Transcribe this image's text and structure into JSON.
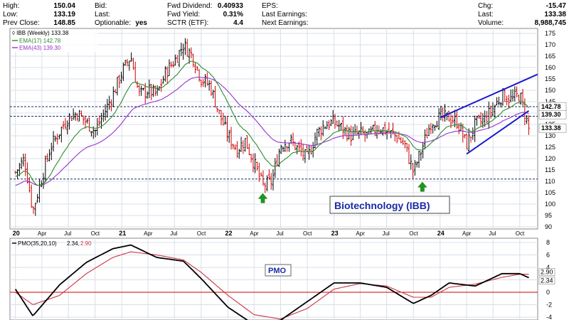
{
  "header": {
    "fields": [
      {
        "label": "High:",
        "value": "150.04"
      },
      {
        "label": "Low:",
        "value": "133.19"
      },
      {
        "label": "Prev Close:",
        "value": "148.85"
      },
      {
        "label": "Bid:",
        "value": ""
      },
      {
        "label": "Last:",
        "value": ""
      },
      {
        "label": "Optionable:",
        "value": "yes"
      },
      {
        "label": "Fwd Dividend:",
        "value": "0.40933"
      },
      {
        "label": "Fwd Yield:",
        "value": "0.31%"
      },
      {
        "label": "SCTR (ETF):",
        "value": "4.4"
      },
      {
        "label": "EPS:",
        "value": ""
      },
      {
        "label": "Last Earnings:",
        "value": ""
      },
      {
        "label": "Next Earnings:",
        "value": ""
      },
      {
        "label": "Chg:",
        "value": "-15.47"
      },
      {
        "label": "Last:",
        "value": "133.38"
      },
      {
        "label": "Volume:",
        "value": "8,988,745"
      }
    ]
  },
  "legend": {
    "main": "IBB (Weekly) 133.38",
    "ema17": "EMA(17) 142.78",
    "ema43": "EMA(43) 139.30",
    "pmo_label": "PMO(35,20,10)",
    "pmo_v1": "2.34,",
    "pmo_v2": "2.90"
  },
  "annotations": {
    "title_box": "Biotechnology (IBB)",
    "pmo_box": "PMO"
  },
  "price_tags": {
    "ema17": "142.78",
    "ema43": "139.30",
    "last": "133.38"
  },
  "pmo_tags": {
    "a": "2.90",
    "b": "2.34"
  },
  "colors": {
    "up": "#000000",
    "down": "#cc0000",
    "ema17": "#2e8b2e",
    "ema43": "#9933cc",
    "trend": "#1a1acc",
    "arrow": "#1a9c1a",
    "grid": "#d8dfe8",
    "dashed": "#1a2a66",
    "pmo": "#000000",
    "pmo_signal": "#cc3344",
    "zero_line": "#cc0000"
  },
  "chart_data": {
    "type": "candlestick",
    "symbol": "IBB",
    "period": "Weekly",
    "price_axis": {
      "min": 90,
      "max": 175,
      "ticks": [
        175,
        170,
        165,
        160,
        155,
        150,
        145,
        140,
        135,
        130,
        125,
        120,
        115,
        110,
        105,
        100,
        95,
        90
      ]
    },
    "x_axis": {
      "start": "2020-01",
      "end": "2024-12",
      "labels": [
        "20",
        "Apr",
        "Jul",
        "Oct",
        "21",
        "Apr",
        "Jul",
        "Oct",
        "22",
        "Apr",
        "Jul",
        "Oct",
        "23",
        "Apr",
        "Jul",
        "Oct",
        "24",
        "Apr",
        "Jul",
        "Oct"
      ],
      "year_labels": [
        "20",
        "21",
        "22",
        "23",
        "24"
      ]
    },
    "close_anchors": [
      {
        "t": "2020-01",
        "v": 114
      },
      {
        "t": "2020-02",
        "v": 120
      },
      {
        "t": "2020-03",
        "v": 97
      },
      {
        "t": "2020-04",
        "v": 112
      },
      {
        "t": "2020-05",
        "v": 125
      },
      {
        "t": "2020-06",
        "v": 132
      },
      {
        "t": "2020-07",
        "v": 138
      },
      {
        "t": "2020-08",
        "v": 140
      },
      {
        "t": "2020-09",
        "v": 136
      },
      {
        "t": "2020-10",
        "v": 132
      },
      {
        "t": "2020-11",
        "v": 140
      },
      {
        "t": "2020-12",
        "v": 148
      },
      {
        "t": "2021-01",
        "v": 158
      },
      {
        "t": "2021-02",
        "v": 165
      },
      {
        "t": "2021-03",
        "v": 148
      },
      {
        "t": "2021-04",
        "v": 150
      },
      {
        "t": "2021-05",
        "v": 148
      },
      {
        "t": "2021-06",
        "v": 158
      },
      {
        "t": "2021-07",
        "v": 163
      },
      {
        "t": "2021-08",
        "v": 170
      },
      {
        "t": "2021-09",
        "v": 165
      },
      {
        "t": "2021-10",
        "v": 155
      },
      {
        "t": "2021-11",
        "v": 152
      },
      {
        "t": "2021-12",
        "v": 140
      },
      {
        "t": "2022-01",
        "v": 130
      },
      {
        "t": "2022-02",
        "v": 124
      },
      {
        "t": "2022-03",
        "v": 128
      },
      {
        "t": "2022-04",
        "v": 118
      },
      {
        "t": "2022-05",
        "v": 108
      },
      {
        "t": "2022-06",
        "v": 110
      },
      {
        "t": "2022-07",
        "v": 126
      },
      {
        "t": "2022-08",
        "v": 128
      },
      {
        "t": "2022-09",
        "v": 124
      },
      {
        "t": "2022-10",
        "v": 120
      },
      {
        "t": "2022-11",
        "v": 131
      },
      {
        "t": "2022-12",
        "v": 135
      },
      {
        "t": "2023-01",
        "v": 136
      },
      {
        "t": "2023-02",
        "v": 133
      },
      {
        "t": "2023-03",
        "v": 130
      },
      {
        "t": "2023-04",
        "v": 131
      },
      {
        "t": "2023-05",
        "v": 130
      },
      {
        "t": "2023-06",
        "v": 134
      },
      {
        "t": "2023-07",
        "v": 132
      },
      {
        "t": "2023-08",
        "v": 130
      },
      {
        "t": "2023-09",
        "v": 126
      },
      {
        "t": "2023-10",
        "v": 114
      },
      {
        "t": "2023-11",
        "v": 125
      },
      {
        "t": "2023-12",
        "v": 136
      },
      {
        "t": "2024-01",
        "v": 138
      },
      {
        "t": "2024-02",
        "v": 138
      },
      {
        "t": "2024-03",
        "v": 136
      },
      {
        "t": "2024-04",
        "v": 126
      },
      {
        "t": "2024-05",
        "v": 135
      },
      {
        "t": "2024-06",
        "v": 137
      },
      {
        "t": "2024-07",
        "v": 142
      },
      {
        "t": "2024-08",
        "v": 148
      },
      {
        "t": "2024-09",
        "v": 146
      },
      {
        "t": "2024-10",
        "v": 148
      },
      {
        "t": "2024-11",
        "v": 133.38
      }
    ],
    "series": [
      {
        "name": "EMA(17)",
        "last": 142.78
      },
      {
        "name": "EMA(43)",
        "last": 139.3
      }
    ],
    "horizontal_lines": [
      142.8,
      138.6,
      111.0
    ],
    "trend_channel": [
      {
        "from": {
          "t": "2024-01",
          "v": 138
        },
        "to": {
          "t": "2024-12",
          "v": 157
        }
      },
      {
        "from": {
          "t": "2024-04",
          "v": 122
        },
        "to": {
          "t": "2024-11",
          "v": 141
        }
      }
    ],
    "markers": [
      {
        "type": "up-arrow",
        "t": "2022-05",
        "v": 104
      },
      {
        "type": "up-arrow",
        "t": "2023-11",
        "v": 109
      }
    ],
    "pmo": {
      "axis": {
        "min": -4,
        "max": 8,
        "ticks": [
          8,
          6,
          4,
          2,
          0,
          -2,
          -4
        ]
      },
      "pmo_anchors": [
        {
          "t": "2020-01",
          "v": 0.5
        },
        {
          "t": "2020-03",
          "v": -3.8
        },
        {
          "t": "2020-06",
          "v": 1.2
        },
        {
          "t": "2020-09",
          "v": 4.8
        },
        {
          "t": "2020-12",
          "v": 7
        },
        {
          "t": "2021-02",
          "v": 7.6
        },
        {
          "t": "2021-05",
          "v": 5.6
        },
        {
          "t": "2021-08",
          "v": 5.0
        },
        {
          "t": "2021-10",
          "v": 2.2
        },
        {
          "t": "2022-01",
          "v": -2.4
        },
        {
          "t": "2022-04",
          "v": -5.2
        },
        {
          "t": "2022-07",
          "v": -4.5
        },
        {
          "t": "2022-10",
          "v": -1.5
        },
        {
          "t": "2023-01",
          "v": 1.5
        },
        {
          "t": "2023-04",
          "v": 1.5
        },
        {
          "t": "2023-07",
          "v": 0.8
        },
        {
          "t": "2023-10",
          "v": -1.8
        },
        {
          "t": "2023-12",
          "v": -0.5
        },
        {
          "t": "2024-02",
          "v": 1.5
        },
        {
          "t": "2024-05",
          "v": 1.0
        },
        {
          "t": "2024-08",
          "v": 3.0
        },
        {
          "t": "2024-10",
          "v": 3.0
        },
        {
          "t": "2024-11",
          "v": 2.34
        }
      ],
      "signal_anchors": [
        {
          "t": "2020-01",
          "v": 0
        },
        {
          "t": "2020-03",
          "v": -2.0
        },
        {
          "t": "2020-06",
          "v": -0.5
        },
        {
          "t": "2020-09",
          "v": 3.0
        },
        {
          "t": "2020-12",
          "v": 5.6
        },
        {
          "t": "2021-02",
          "v": 6.5
        },
        {
          "t": "2021-05",
          "v": 6.0
        },
        {
          "t": "2021-08",
          "v": 5.2
        },
        {
          "t": "2021-10",
          "v": 3.2
        },
        {
          "t": "2022-01",
          "v": -0.5
        },
        {
          "t": "2022-04",
          "v": -3.6
        },
        {
          "t": "2022-07",
          "v": -4.3
        },
        {
          "t": "2022-10",
          "v": -2.6
        },
        {
          "t": "2023-01",
          "v": 0.5
        },
        {
          "t": "2023-04",
          "v": 1.4
        },
        {
          "t": "2023-07",
          "v": 1.0
        },
        {
          "t": "2023-10",
          "v": -0.8
        },
        {
          "t": "2023-12",
          "v": -0.8
        },
        {
          "t": "2024-02",
          "v": 0.8
        },
        {
          "t": "2024-05",
          "v": 1.3
        },
        {
          "t": "2024-08",
          "v": 2.4
        },
        {
          "t": "2024-10",
          "v": 2.9
        },
        {
          "t": "2024-11",
          "v": 2.9
        }
      ]
    }
  }
}
